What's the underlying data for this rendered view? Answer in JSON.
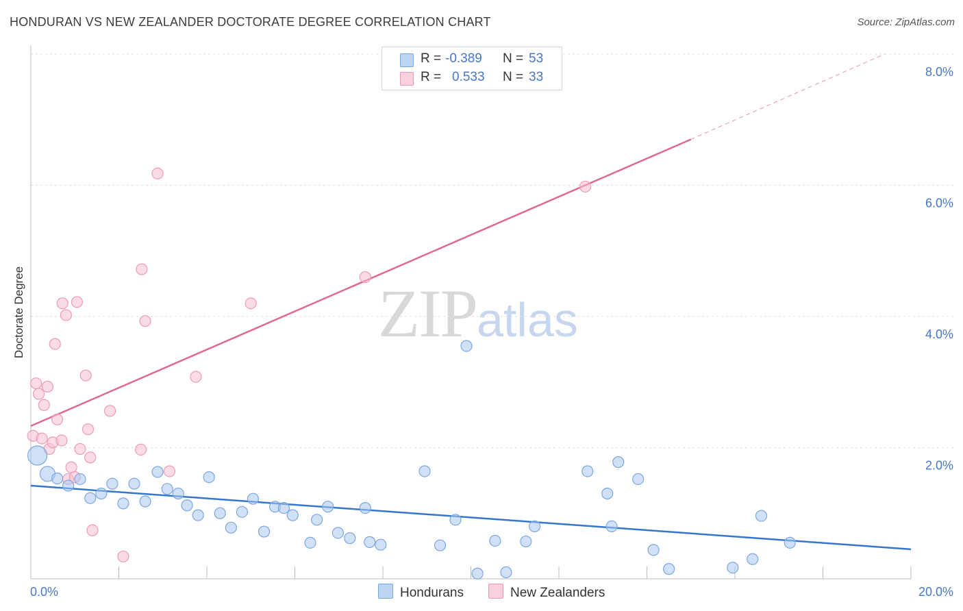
{
  "header": {
    "title": "HONDURAN VS NEW ZEALANDER DOCTORATE DEGREE CORRELATION CHART",
    "source": "Source: ZipAtlas.com"
  },
  "watermark": {
    "zip": "ZIP",
    "atlas": "atlas"
  },
  "stats": {
    "hondurans": {
      "r_label": "R =",
      "r_value": "-0.389",
      "n_label": "N =",
      "n_value": "53"
    },
    "nz": {
      "r_label": "R =",
      "r_value": "0.533",
      "n_label": "N =",
      "n_value": "33"
    }
  },
  "legend": {
    "hondurans": "Hondurans",
    "nz": "New Zealanders"
  },
  "colors": {
    "hondurans_fill": "#aac8f0",
    "hondurans_stroke": "#7aa6e0",
    "hondurans_line": "#3377cc",
    "nz_fill": "#f8c0d0",
    "nz_stroke": "#ee9ab4",
    "nz_line": "#e06890"
  },
  "chart_data": {
    "type": "scatter",
    "title": "HONDURAN VS NEW ZEALANDER DOCTORATE DEGREE CORRELATION CHART",
    "xlabel": "",
    "ylabel": "Doctorate Degree",
    "xlim": [
      0,
      20
    ],
    "ylim": [
      0,
      8
    ],
    "x_tick_labels": [
      "0.0%",
      "20.0%"
    ],
    "y_ticks": [
      2,
      4,
      6,
      8
    ],
    "y_tick_labels": [
      "2.0%",
      "4.0%",
      "6.0%",
      "8.0%"
    ],
    "grid": "horizontal dashed",
    "legend": "bottom-center",
    "series": [
      {
        "name": "Hondurans",
        "r": -0.389,
        "n": 53,
        "trend": {
          "x": [
            0,
            20
          ],
          "y": [
            1.42,
            0.45
          ]
        },
        "points": [
          {
            "x": 0.15,
            "y": 1.88
          },
          {
            "x": 0.38,
            "y": 1.6
          },
          {
            "x": 0.6,
            "y": 1.53
          },
          {
            "x": 0.85,
            "y": 1.42
          },
          {
            "x": 1.12,
            "y": 1.52
          },
          {
            "x": 1.35,
            "y": 1.23
          },
          {
            "x": 1.6,
            "y": 1.3
          },
          {
            "x": 1.85,
            "y": 1.45
          },
          {
            "x": 2.1,
            "y": 1.15
          },
          {
            "x": 2.35,
            "y": 1.45
          },
          {
            "x": 2.6,
            "y": 1.18
          },
          {
            "x": 2.88,
            "y": 1.63
          },
          {
            "x": 3.1,
            "y": 1.37
          },
          {
            "x": 3.35,
            "y": 1.3
          },
          {
            "x": 3.55,
            "y": 1.12
          },
          {
            "x": 3.8,
            "y": 0.97
          },
          {
            "x": 4.05,
            "y": 1.55
          },
          {
            "x": 4.3,
            "y": 1.0
          },
          {
            "x": 4.55,
            "y": 0.78
          },
          {
            "x": 4.8,
            "y": 1.02
          },
          {
            "x": 5.05,
            "y": 1.22
          },
          {
            "x": 5.3,
            "y": 0.72
          },
          {
            "x": 5.55,
            "y": 1.1
          },
          {
            "x": 5.75,
            "y": 1.08
          },
          {
            "x": 5.95,
            "y": 0.97
          },
          {
            "x": 6.35,
            "y": 0.55
          },
          {
            "x": 6.5,
            "y": 0.9
          },
          {
            "x": 6.75,
            "y": 1.1
          },
          {
            "x": 6.98,
            "y": 0.7
          },
          {
            "x": 7.25,
            "y": 0.62
          },
          {
            "x": 7.6,
            "y": 1.08
          },
          {
            "x": 7.7,
            "y": 0.56
          },
          {
            "x": 7.95,
            "y": 0.52
          },
          {
            "x": 8.95,
            "y": 1.64
          },
          {
            "x": 9.3,
            "y": 0.51
          },
          {
            "x": 9.65,
            "y": 0.9
          },
          {
            "x": 9.9,
            "y": 3.55
          },
          {
            "x": 10.15,
            "y": 0.08
          },
          {
            "x": 10.55,
            "y": 0.58
          },
          {
            "x": 10.8,
            "y": 0.1
          },
          {
            "x": 11.25,
            "y": 0.57
          },
          {
            "x": 11.45,
            "y": 0.8
          },
          {
            "x": 12.65,
            "y": 1.64
          },
          {
            "x": 13.1,
            "y": 1.3
          },
          {
            "x": 13.2,
            "y": 0.8
          },
          {
            "x": 13.35,
            "y": 1.78
          },
          {
            "x": 13.8,
            "y": 1.52
          },
          {
            "x": 14.15,
            "y": 0.44
          },
          {
            "x": 14.5,
            "y": 0.15
          },
          {
            "x": 15.95,
            "y": 0.17
          },
          {
            "x": 16.4,
            "y": 0.3
          },
          {
            "x": 16.6,
            "y": 0.96
          },
          {
            "x": 17.25,
            "y": 0.55
          }
        ]
      },
      {
        "name": "New Zealanders",
        "r": 0.533,
        "n": 33,
        "trend": {
          "x": [
            0,
            15
          ],
          "y": [
            2.33,
            6.7
          ]
        },
        "trend_dashed_extension": {
          "x": [
            15,
            19.4
          ],
          "y": [
            6.7,
            8.2
          ]
        },
        "points": [
          {
            "x": 0.05,
            "y": 2.18
          },
          {
            "x": 0.12,
            "y": 2.98
          },
          {
            "x": 0.18,
            "y": 2.82
          },
          {
            "x": 0.25,
            "y": 2.14
          },
          {
            "x": 0.3,
            "y": 2.65
          },
          {
            "x": 0.38,
            "y": 2.93
          },
          {
            "x": 0.42,
            "y": 1.98
          },
          {
            "x": 0.5,
            "y": 2.08
          },
          {
            "x": 0.55,
            "y": 3.58
          },
          {
            "x": 0.6,
            "y": 2.43
          },
          {
            "x": 0.7,
            "y": 2.11
          },
          {
            "x": 0.72,
            "y": 4.2
          },
          {
            "x": 0.8,
            "y": 4.02
          },
          {
            "x": 0.85,
            "y": 1.52
          },
          {
            "x": 0.92,
            "y": 1.7
          },
          {
            "x": 1.0,
            "y": 1.55
          },
          {
            "x": 1.05,
            "y": 4.22
          },
          {
            "x": 1.12,
            "y": 1.98
          },
          {
            "x": 1.25,
            "y": 3.1
          },
          {
            "x": 1.3,
            "y": 2.28
          },
          {
            "x": 1.35,
            "y": 1.85
          },
          {
            "x": 1.4,
            "y": 0.74
          },
          {
            "x": 1.8,
            "y": 2.56
          },
          {
            "x": 2.1,
            "y": 0.34
          },
          {
            "x": 2.5,
            "y": 1.97
          },
          {
            "x": 2.52,
            "y": 4.72
          },
          {
            "x": 2.6,
            "y": 3.93
          },
          {
            "x": 2.88,
            "y": 6.18
          },
          {
            "x": 3.15,
            "y": 1.64
          },
          {
            "x": 3.75,
            "y": 3.08
          },
          {
            "x": 5.0,
            "y": 4.2
          },
          {
            "x": 7.6,
            "y": 4.6
          },
          {
            "x": 12.6,
            "y": 5.98
          }
        ]
      }
    ]
  }
}
